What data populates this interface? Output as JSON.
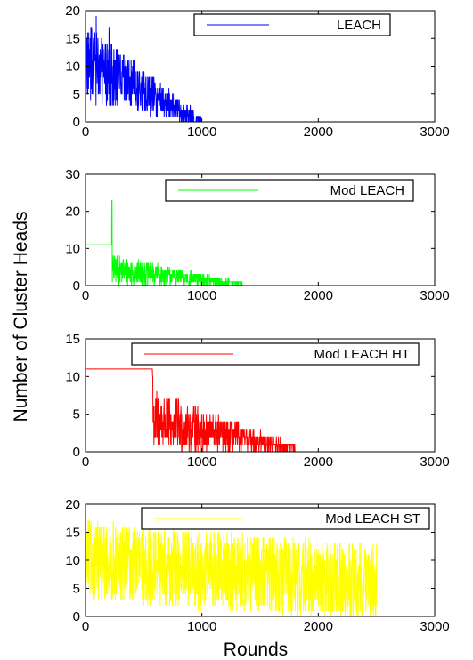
{
  "figure": {
    "ylabel": "Number of Cluster Heads",
    "xlabel": "Rounds"
  },
  "chart_data": [
    {
      "type": "line",
      "series": [
        {
          "name": "LEACH",
          "color": "#0000ff",
          "start": 0,
          "end": 2500,
          "pattern": "decay-noise",
          "max_value": 19,
          "active_until": 1000
        }
      ],
      "xlim": [
        0,
        3000
      ],
      "ylim": [
        0,
        20
      ],
      "xticks": [
        0,
        1000,
        2000,
        3000
      ],
      "yticks": [
        0,
        5,
        10,
        15,
        20
      ],
      "legend": "top-right"
    },
    {
      "type": "line",
      "series": [
        {
          "name": "Mod LEACH",
          "color": "#00ff00",
          "start": 0,
          "end": 2500,
          "pattern": "flat-then-noise",
          "flat_value": 11,
          "flat_until": 225,
          "spike_value": 23,
          "max_value": 11,
          "active_until": 1350
        }
      ],
      "xlim": [
        0,
        3000
      ],
      "ylim": [
        0,
        30
      ],
      "xticks": [
        0,
        1000,
        2000,
        3000
      ],
      "yticks": [
        0,
        10,
        20,
        30
      ],
      "legend": "top-right"
    },
    {
      "type": "line",
      "series": [
        {
          "name": "Mod LEACH HT",
          "color": "#ff0000",
          "start": 0,
          "end": 2500,
          "pattern": "flat-then-noise",
          "flat_value": 11,
          "flat_until": 575,
          "spike_value": 10,
          "max_value": 10,
          "active_until": 1800
        }
      ],
      "xlim": [
        0,
        3000
      ],
      "ylim": [
        0,
        15
      ],
      "xticks": [
        0,
        1000,
        2000,
        3000
      ],
      "yticks": [
        0,
        5,
        10,
        15
      ],
      "legend": "top-right"
    },
    {
      "type": "line",
      "series": [
        {
          "name": "Mod LEACH ST",
          "color": "#ffff00",
          "start": 0,
          "end": 2500,
          "pattern": "persistent-noise",
          "max_value": 18,
          "mean_start": 10,
          "mean_end": 6
        }
      ],
      "xlim": [
        0,
        3000
      ],
      "ylim": [
        0,
        20
      ],
      "xticks": [
        0,
        1000,
        2000,
        3000
      ],
      "yticks": [
        0,
        5,
        10,
        15,
        20
      ],
      "legend": "top-right"
    }
  ]
}
